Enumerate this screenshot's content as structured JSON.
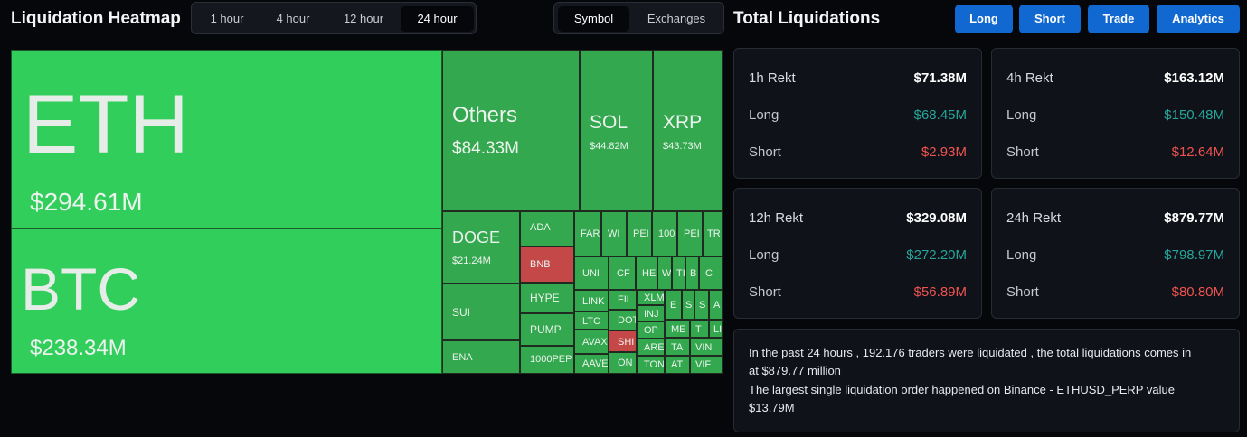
{
  "header": {
    "title": "Liquidation Heatmap",
    "time_tabs": [
      "1 hour",
      "4 hour",
      "12 hour",
      "24 hour"
    ],
    "active_time_tab": "24 hour",
    "view_tabs": [
      "Symbol",
      "Exchanges"
    ],
    "active_view_tab": "Symbol"
  },
  "right_header": {
    "title": "Total Liquidations",
    "buttons": [
      "Long",
      "Short",
      "Trade",
      "Analytics"
    ]
  },
  "colors": {
    "bright_green": "#31ce5b",
    "mid_green": "#34a84f",
    "red_tile": "#c44848",
    "long_text": "#26a69a",
    "short_text": "#ef5350",
    "button_blue": "#1068d0"
  },
  "heatmap": {
    "tiles": [
      {
        "symbol": "ETH",
        "value": "$294.61M",
        "color": "bright"
      },
      {
        "symbol": "BTC",
        "value": "$238.34M",
        "color": "bright"
      },
      {
        "symbol": "Others",
        "value": "$84.33M",
        "color": "mid"
      },
      {
        "symbol": "SOL",
        "value": "$44.82M",
        "color": "mid"
      },
      {
        "symbol": "XRP",
        "value": "$43.73M",
        "color": "mid"
      },
      {
        "symbol": "DOGE",
        "value": "$21.24M",
        "color": "mid"
      },
      {
        "symbol": "SUI",
        "value": "",
        "color": "mid"
      },
      {
        "symbol": "ENA",
        "value": "",
        "color": "mid"
      },
      {
        "symbol": "ADA",
        "value": "",
        "color": "mid"
      },
      {
        "symbol": "BNB",
        "value": "",
        "color": "red"
      },
      {
        "symbol": "HYPE",
        "value": "",
        "color": "mid"
      },
      {
        "symbol": "PUMP",
        "value": "",
        "color": "mid"
      },
      {
        "symbol": "1000PEP",
        "value": "",
        "color": "mid"
      },
      {
        "symbol": "FAR",
        "value": "",
        "color": "mid"
      },
      {
        "symbol": "WI",
        "value": "",
        "color": "mid"
      },
      {
        "symbol": "PEI",
        "value": "",
        "color": "mid"
      },
      {
        "symbol": "100",
        "value": "",
        "color": "mid"
      },
      {
        "symbol": "PEI",
        "value": "",
        "color": "mid"
      },
      {
        "symbol": "TR",
        "value": "",
        "color": "mid"
      },
      {
        "symbol": "UNI",
        "value": "",
        "color": "mid"
      },
      {
        "symbol": "LINK",
        "value": "",
        "color": "mid"
      },
      {
        "symbol": "LTC",
        "value": "",
        "color": "mid"
      },
      {
        "symbol": "AVAX",
        "value": "",
        "color": "mid"
      },
      {
        "symbol": "AAVE",
        "value": "",
        "color": "mid"
      },
      {
        "symbol": "CF",
        "value": "",
        "color": "mid"
      },
      {
        "symbol": "HE",
        "value": "",
        "color": "mid"
      },
      {
        "symbol": "W",
        "value": "",
        "color": "mid"
      },
      {
        "symbol": "TI",
        "value": "",
        "color": "mid"
      },
      {
        "symbol": "B",
        "value": "",
        "color": "mid"
      },
      {
        "symbol": "C",
        "value": "",
        "color": "mid"
      },
      {
        "symbol": "FIL",
        "value": "",
        "color": "mid"
      },
      {
        "symbol": "DOT",
        "value": "",
        "color": "mid"
      },
      {
        "symbol": "SHI",
        "value": "",
        "color": "red"
      },
      {
        "symbol": "ON",
        "value": "",
        "color": "mid"
      },
      {
        "symbol": "XLM",
        "value": "",
        "color": "mid"
      },
      {
        "symbol": "INJ",
        "value": "",
        "color": "mid"
      },
      {
        "symbol": "OP",
        "value": "",
        "color": "mid"
      },
      {
        "symbol": "ARE",
        "value": "",
        "color": "mid"
      },
      {
        "symbol": "TON",
        "value": "",
        "color": "mid"
      },
      {
        "symbol": "E",
        "value": "",
        "color": "mid"
      },
      {
        "symbol": "S",
        "value": "",
        "color": "mid"
      },
      {
        "symbol": "S",
        "value": "",
        "color": "mid"
      },
      {
        "symbol": "A",
        "value": "",
        "color": "mid"
      },
      {
        "symbol": "ME",
        "value": "",
        "color": "mid"
      },
      {
        "symbol": "T",
        "value": "",
        "color": "mid"
      },
      {
        "symbol": "LI",
        "value": "",
        "color": "mid"
      },
      {
        "symbol": "TA",
        "value": "",
        "color": "mid"
      },
      {
        "symbol": "VIN",
        "value": "",
        "color": "mid"
      },
      {
        "symbol": "AT",
        "value": "",
        "color": "mid"
      },
      {
        "symbol": "VIF",
        "value": "",
        "color": "mid"
      }
    ]
  },
  "cards": [
    {
      "title": "1h Rekt",
      "total": "$71.38M",
      "long_label": "Long",
      "long": "$68.45M",
      "short_label": "Short",
      "short": "$2.93M"
    },
    {
      "title": "4h Rekt",
      "total": "$163.12M",
      "long_label": "Long",
      "long": "$150.48M",
      "short_label": "Short",
      "short": "$12.64M"
    },
    {
      "title": "12h Rekt",
      "total": "$329.08M",
      "long_label": "Long",
      "long": "$272.20M",
      "short_label": "Short",
      "short": "$56.89M"
    },
    {
      "title": "24h Rekt",
      "total": "$879.77M",
      "long_label": "Long",
      "long": "$798.97M",
      "short_label": "Short",
      "short": "$80.80M"
    }
  ],
  "summary": {
    "line1": "In the past 24 hours , 192.176 traders were liquidated , the total liquidations comes in",
    "line2": "at $879.77 million",
    "line3": "The largest single liquidation order happened on Binance - ETHUSD_PERP value",
    "line4": "$13.79M"
  }
}
